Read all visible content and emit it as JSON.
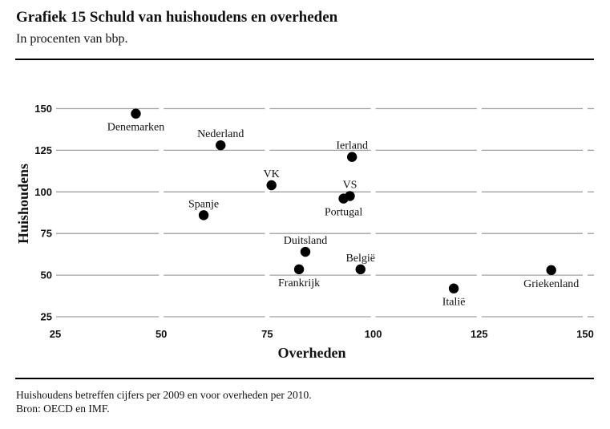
{
  "header": {
    "title": "Grafiek 15  Schuld van huishoudens en overheden",
    "subtitle": "In procenten van bbp."
  },
  "footer": {
    "note": "Huishoudens betreffen cijfers per 2009 en voor overheden per 2010.",
    "source": "Bron: OECD en IMF."
  },
  "chart_data": {
    "type": "scatter",
    "title": "Schuld van huishoudens en overheden",
    "subtitle": "In procenten van bbp.",
    "xlabel": "Overheden",
    "ylabel": "Huishoudens",
    "xlim": [
      25,
      150
    ],
    "ylim": [
      25,
      150
    ],
    "xticks": [
      25,
      50,
      75,
      100,
      125,
      150
    ],
    "yticks": [
      25,
      50,
      75,
      100,
      125,
      150
    ],
    "grid": "horizontal",
    "legend": "none",
    "marker_color": "#000000",
    "grid_color": "#a0a0a0",
    "points": [
      {
        "label": "Denemarken",
        "x": 44,
        "y": 147,
        "label_pos": "below"
      },
      {
        "label": "Nederland",
        "x": 64,
        "y": 128,
        "label_pos": "above"
      },
      {
        "label": "Ierland",
        "x": 95,
        "y": 121,
        "label_pos": "above"
      },
      {
        "label": "VK",
        "x": 76,
        "y": 104,
        "label_pos": "above"
      },
      {
        "label": "VS",
        "x": 94.5,
        "y": 97.5,
        "label_pos": "above"
      },
      {
        "label": "Portugal",
        "x": 93,
        "y": 96,
        "label_pos": "below"
      },
      {
        "label": "Spanje",
        "x": 60,
        "y": 86,
        "label_pos": "above"
      },
      {
        "label": "Duitsland",
        "x": 84,
        "y": 64,
        "label_pos": "above"
      },
      {
        "label": "Frankrijk",
        "x": 82.5,
        "y": 53.5,
        "label_pos": "below"
      },
      {
        "label": "België",
        "x": 97,
        "y": 53.5,
        "label_pos": "above"
      },
      {
        "label": "Italië",
        "x": 119,
        "y": 42,
        "label_pos": "below"
      },
      {
        "label": "Griekenland",
        "x": 142,
        "y": 53,
        "label_pos": "below"
      }
    ]
  }
}
